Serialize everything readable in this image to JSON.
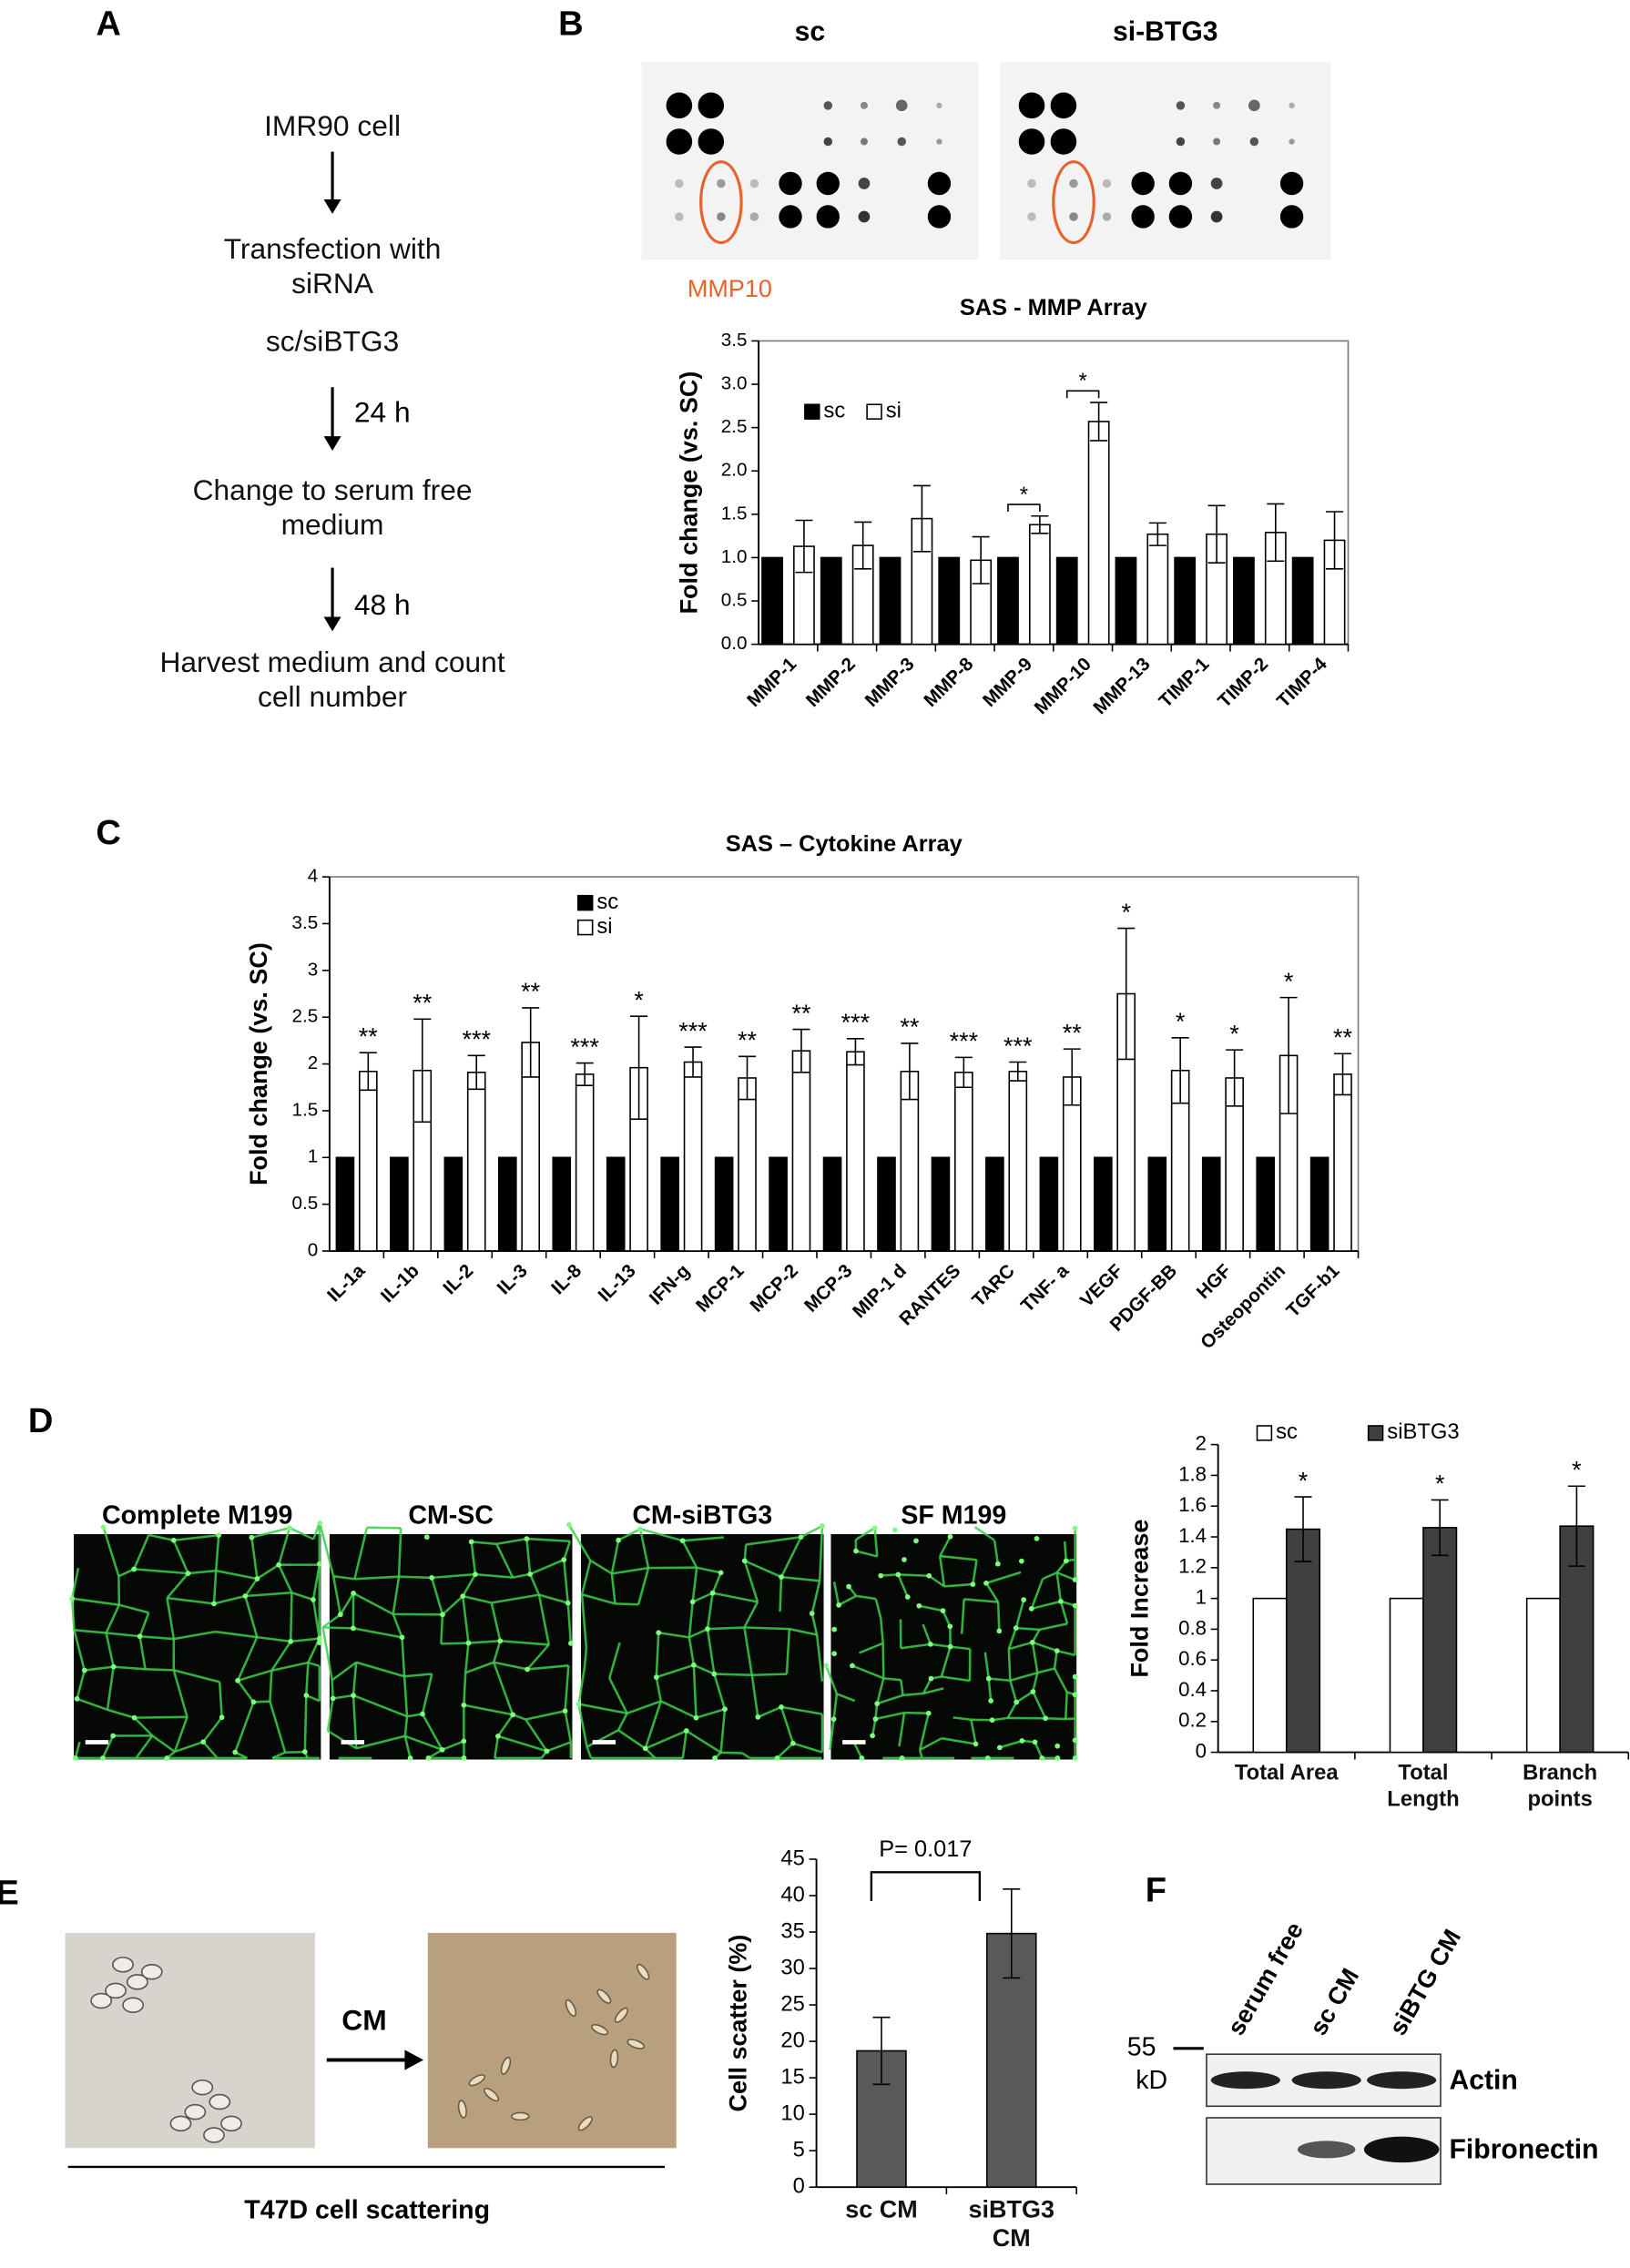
{
  "panel_labels": [
    "A",
    "B",
    "C",
    "D",
    "E",
    "F"
  ],
  "flowchart": {
    "steps": [
      "IMR90 cell",
      "Transfection with\nsiRNA",
      "sc/siBTG3",
      "Change to serum free\nmedium",
      "Harvest medium and count\ncell number"
    ],
    "intervals": [
      "24 h",
      "48 h"
    ]
  },
  "array_blots": {
    "conditions": [
      "sc",
      "si-BTG3"
    ],
    "highlight": "MMP10"
  },
  "tube_formation": {
    "conditions": [
      "Complete M199",
      "CM-SC",
      "CM-siBTG3",
      "SF M199"
    ]
  },
  "scattering": {
    "treatment": "CM",
    "caption": "T47D cell scattering"
  },
  "western_blot": {
    "lanes": [
      "serum free",
      "sc CM",
      "siBTG CM"
    ],
    "marker": 55,
    "marker_unit": "kD",
    "proteins": [
      "Actin",
      "Fibronectin"
    ]
  },
  "chart_data": [
    {
      "type": "bar",
      "title": "SAS - MMP Array",
      "ylabel": "Fold change (vs. SC)",
      "categories": [
        "MMP-1",
        "MMP-2",
        "MMP-3",
        "MMP-8",
        "MMP-9",
        "MMP-10",
        "MMP-13",
        "TIMP-1",
        "TIMP-2",
        "TIMP-4"
      ],
      "series": [
        {
          "name": "sc",
          "color": "#000000",
          "values": [
            1,
            1,
            1,
            1,
            1,
            1,
            1,
            1,
            1,
            1
          ]
        },
        {
          "name": "si",
          "color": "#ffffff",
          "values": [
            1.13,
            1.14,
            1.45,
            0.97,
            1.38,
            2.57,
            1.27,
            1.27,
            1.29,
            1.2
          ],
          "errors": [
            0.3,
            0.27,
            0.38,
            0.27,
            0.1,
            0.22,
            0.13,
            0.33,
            0.33,
            0.33
          ]
        }
      ],
      "significance": [
        null,
        null,
        null,
        null,
        "*",
        "*",
        null,
        null,
        null,
        null
      ],
      "brackets": true,
      "ylim": [
        0,
        3.5
      ],
      "yticks": [
        {
          "value": 0,
          "label": "0.0"
        },
        0.5,
        {
          "value": 1,
          "label": "1.0"
        },
        1.5,
        {
          "value": 2,
          "label": "2.0"
        },
        2.5,
        {
          "value": 3,
          "label": "3.0"
        },
        3.5
      ],
      "legend": "upper left",
      "frame": true
    },
    {
      "type": "bar",
      "title": "SAS – Cytokine Array",
      "ylabel": "Fold change (vs. SC)",
      "categories": [
        "IL-1a",
        "IL-1b",
        "IL-2",
        "IL-3",
        "IL-8",
        "IL-13",
        "IFN-g",
        "MCP-1",
        "MCP-2",
        "MCP-3",
        "MIP-1 d",
        "RANTES",
        "TARC",
        "TNF- a",
        "VEGF",
        "PDGF-BB",
        "HGF",
        "Osteopontin",
        "TGF-b1"
      ],
      "series": [
        {
          "name": "sc",
          "color": "#000000",
          "values": [
            1,
            1,
            1,
            1,
            1,
            1,
            1,
            1,
            1,
            1,
            1,
            1,
            1,
            1,
            1,
            1,
            1,
            1,
            1
          ]
        },
        {
          "name": "si",
          "color": "#ffffff",
          "values": [
            1.92,
            1.93,
            1.91,
            2.23,
            1.89,
            1.96,
            2.02,
            1.85,
            2.14,
            2.13,
            1.92,
            1.91,
            1.92,
            1.86,
            2.75,
            1.93,
            1.85,
            2.09,
            1.89
          ],
          "errors": [
            0.2,
            0.55,
            0.18,
            0.37,
            0.12,
            0.55,
            0.16,
            0.23,
            0.23,
            0.14,
            0.3,
            0.16,
            0.1,
            0.3,
            0.7,
            0.35,
            0.3,
            0.62,
            0.22
          ]
        }
      ],
      "significance": [
        "**",
        "**",
        "***",
        "**",
        "***",
        "*",
        "***",
        "**",
        "**",
        "***",
        "**",
        "***",
        "***",
        "**",
        "*",
        "*",
        "*",
        "*",
        "**"
      ],
      "brackets": false,
      "ylim": [
        0,
        4
      ],
      "yticks": [
        0,
        0.5,
        1,
        1.5,
        2,
        2.5,
        3,
        3.5,
        4
      ],
      "legend": "upper left",
      "frame": true
    },
    {
      "type": "bar",
      "ylabel": "Fold Increase",
      "categories": [
        "Total Area",
        "Total\nLength",
        "Branch\npoints"
      ],
      "series": [
        {
          "name": "sc",
          "color": "#ffffff",
          "values": [
            1,
            1,
            1
          ]
        },
        {
          "name": "siBTG3",
          "color": "#404040",
          "values": [
            1.45,
            1.46,
            1.47
          ],
          "errors": [
            0.21,
            0.18,
            0.26
          ]
        }
      ],
      "significance": [
        "*",
        "*",
        "*"
      ],
      "brackets": false,
      "ylim": [
        0,
        2
      ],
      "yticks": [
        0,
        0.2,
        0.4,
        0.6,
        0.8,
        1,
        1.2,
        1.4,
        1.6,
        1.8,
        2
      ],
      "legend": "top",
      "frame": false
    },
    {
      "type": "bar",
      "ylabel": "Cell scatter (%)",
      "categories": [
        "sc CM",
        "siBTG3\nCM"
      ],
      "color": "#595959",
      "values": [
        18.7,
        34.8
      ],
      "errors": [
        4.6,
        6.1
      ],
      "annotation": "P= 0.017",
      "ylim": [
        0,
        45
      ],
      "yticks": [
        0,
        5,
        10,
        15,
        20,
        25,
        30,
        35,
        40,
        45
      ],
      "frame": false
    }
  ]
}
